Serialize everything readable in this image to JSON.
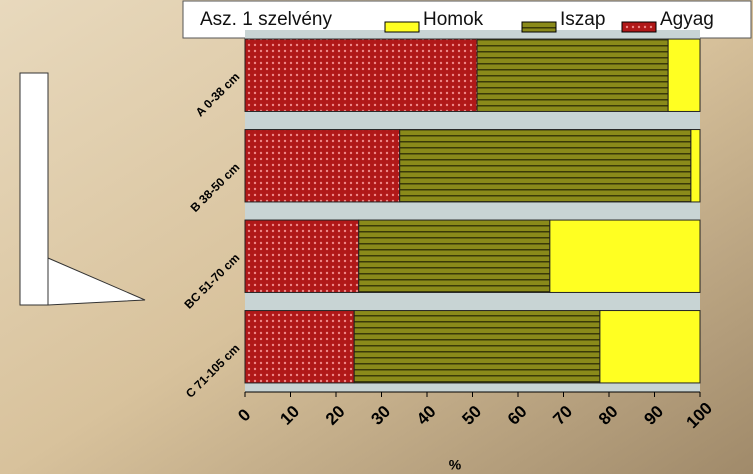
{
  "chart_data": {
    "type": "stacked_barh",
    "legend_title": "Asz. 1 szelvény",
    "x_label": "%",
    "categories": [
      "A 0-38 cm",
      "B 38-50 cm",
      "BC 51-70 cm",
      "C 71-105 cm"
    ],
    "series": [
      {
        "name": "Agyag",
        "color": "#b01818",
        "values": [
          51,
          34,
          25,
          24
        ]
      },
      {
        "name": "Iszap",
        "color": "#8a8a1a",
        "values": [
          42,
          64,
          42,
          54
        ]
      },
      {
        "name": "Homok",
        "color": "#ffff22",
        "values": [
          7,
          2,
          33,
          22
        ]
      }
    ],
    "xlim": [
      0,
      100
    ],
    "xticks": [
      0,
      10,
      20,
      30,
      40,
      50,
      60,
      70,
      80,
      90,
      100
    ]
  }
}
